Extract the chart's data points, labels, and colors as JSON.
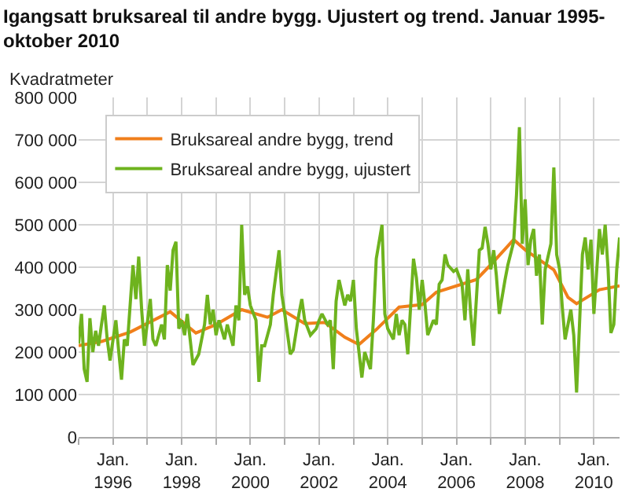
{
  "chart_data": {
    "type": "line",
    "title": "Igangsatt bruksareal til andre bygg. Ujustert og trend. Januar 1995-oktober 2010",
    "ylabel": "Kvadratmeter",
    "xlim": [
      "1995-01",
      "2010-10"
    ],
    "xticks": [
      {
        "value": "1995-01",
        "label": null
      },
      {
        "value": "1996-01",
        "label": "Jan.\n1996"
      },
      {
        "value": "1997-01",
        "label": null
      },
      {
        "value": "1998-01",
        "label": "Jan.\n1998"
      },
      {
        "value": "1999-01",
        "label": null
      },
      {
        "value": "2000-01",
        "label": "Jan.\n2000"
      },
      {
        "value": "2001-01",
        "label": null
      },
      {
        "value": "2002-01",
        "label": "Jan.\n2002"
      },
      {
        "value": "2003-01",
        "label": null
      },
      {
        "value": "2004-01",
        "label": "Jan.\n2004"
      },
      {
        "value": "2005-01",
        "label": null
      },
      {
        "value": "2006-01",
        "label": "Jan.\n2006"
      },
      {
        "value": "2007-01",
        "label": null
      },
      {
        "value": "2008-01",
        "label": "Jan.\n2008"
      },
      {
        "value": "2009-01",
        "label": null
      },
      {
        "value": "2010-01",
        "label": "Jan.\n2010"
      }
    ],
    "ylim": [
      0,
      800000
    ],
    "yticks": [
      {
        "value": 0,
        "label": "0"
      },
      {
        "value": 100000,
        "label": "100 000"
      },
      {
        "value": 200000,
        "label": "200 000"
      },
      {
        "value": 300000,
        "label": "300 000"
      },
      {
        "value": 400000,
        "label": "400 000"
      },
      {
        "value": 500000,
        "label": "500 000"
      },
      {
        "value": 600000,
        "label": "600 000"
      },
      {
        "value": 700000,
        "label": "700 000"
      },
      {
        "value": 800000,
        "label": "800 000"
      }
    ],
    "grid": true,
    "legend": "top left",
    "marker": "none",
    "line_style": "solid",
    "series": [
      {
        "name": "Bruksareal andre bygg, trend",
        "color": "#f07f1b",
        "x": [
          "1995-01",
          "1995-09",
          "1996-07",
          "1997-09",
          "1998-06",
          "1999-01",
          "1999-10",
          "2000-07",
          "2000-12",
          "2001-08",
          "2002-03",
          "2002-10",
          "2003-03",
          "2003-09",
          "2004-05",
          "2005-01",
          "2005-06",
          "2006-08",
          "2007-01",
          "2007-09",
          "2008-01",
          "2008-11",
          "2009-04",
          "2009-07",
          "2010-03",
          "2010-10"
        ],
        "values": [
          215000,
          225000,
          247000,
          295000,
          245000,
          265000,
          300000,
          282000,
          300000,
          267000,
          270000,
          235000,
          218000,
          253000,
          306000,
          312000,
          341000,
          371000,
          406000,
          465000,
          441000,
          394000,
          329000,
          314000,
          347000,
          356000
        ]
      },
      {
        "name": "Bruksareal andre bygg, ujustert",
        "color": "#6eb31e",
        "x": [
          "1995-01",
          "1995-02",
          "1995-03",
          "1995-04",
          "1995-05",
          "1995-06",
          "1995-07",
          "1995-08",
          "1995-09",
          "1995-10",
          "1995-11",
          "1995-12",
          "1996-02",
          "1996-03",
          "1996-04",
          "1996-05",
          "1996-06",
          "1996-08",
          "1996-09",
          "1996-10",
          "1996-11",
          "1996-12",
          "1997-02",
          "1997-03",
          "1997-04",
          "1997-06",
          "1997-07",
          "1997-08",
          "1997-09",
          "1997-10",
          "1997-11",
          "1997-12",
          "1998-01",
          "1998-02",
          "1998-03",
          "1998-04",
          "1998-05",
          "1998-07",
          "1998-09",
          "1998-10",
          "1998-11",
          "1998-12",
          "1999-01",
          "1999-02",
          "1999-04",
          "1999-05",
          "1999-07",
          "1999-08",
          "1999-09",
          "1999-10",
          "1999-11",
          "1999-12",
          "2000-01",
          "2000-03",
          "2000-04",
          "2000-05",
          "2000-06",
          "2000-08",
          "2000-09",
          "2000-11",
          "2000-12",
          "2001-01",
          "2001-02",
          "2001-03",
          "2001-04",
          "2001-06",
          "2001-07",
          "2001-08",
          "2001-10",
          "2001-12",
          "2002-01",
          "2002-02",
          "2002-04",
          "2002-05",
          "2002-06",
          "2002-07",
          "2002-08",
          "2002-10",
          "2002-11",
          "2002-12",
          "2003-01",
          "2003-02",
          "2003-04",
          "2003-05",
          "2003-07",
          "2003-08",
          "2003-09",
          "2003-11",
          "2003-12",
          "2004-01",
          "2004-03",
          "2004-04",
          "2004-05",
          "2004-06",
          "2004-07",
          "2004-08",
          "2004-10",
          "2004-11",
          "2004-12",
          "2005-01",
          "2005-02",
          "2005-03",
          "2005-05",
          "2005-06",
          "2005-07",
          "2005-08",
          "2005-09",
          "2005-10",
          "2005-12",
          "2006-01",
          "2006-03",
          "2006-04",
          "2006-05",
          "2006-06",
          "2006-07",
          "2006-09",
          "2006-10",
          "2006-11",
          "2006-12",
          "2007-01",
          "2007-02",
          "2007-03",
          "2007-04",
          "2007-06",
          "2007-07",
          "2007-09",
          "2007-10",
          "2007-11",
          "2007-12",
          "2008-01",
          "2008-02",
          "2008-03",
          "2008-04",
          "2008-05",
          "2008-06",
          "2008-07",
          "2008-08",
          "2008-10",
          "2008-11",
          "2008-12",
          "2009-01",
          "2009-02",
          "2009-03",
          "2009-05",
          "2009-06",
          "2009-07",
          "2009-08",
          "2009-09",
          "2009-10",
          "2009-11",
          "2009-12",
          "2010-01",
          "2010-03",
          "2010-04",
          "2010-05",
          "2010-06",
          "2010-07",
          "2010-08",
          "2010-09",
          "2010-10"
        ],
        "values": [
          220000,
          290000,
          160000,
          130000,
          280000,
          200000,
          250000,
          215000,
          265000,
          310000,
          230000,
          180000,
          275000,
          205000,
          135000,
          230000,
          215000,
          405000,
          325000,
          425000,
          300000,
          215000,
          325000,
          230000,
          215000,
          265000,
          230000,
          405000,
          345000,
          440000,
          460000,
          255000,
          275000,
          240000,
          290000,
          230000,
          170000,
          195000,
          265000,
          335000,
          265000,
          300000,
          240000,
          275000,
          230000,
          265000,
          215000,
          310000,
          275000,
          500000,
          335000,
          355000,
          310000,
          275000,
          130000,
          215000,
          215000,
          265000,
          335000,
          440000,
          335000,
          290000,
          240000,
          195000,
          205000,
          290000,
          325000,
          275000,
          240000,
          255000,
          275000,
          290000,
          265000,
          275000,
          160000,
          320000,
          370000,
          310000,
          335000,
          320000,
          370000,
          255000,
          140000,
          200000,
          160000,
          275000,
          420000,
          500000,
          290000,
          255000,
          230000,
          290000,
          240000,
          275000,
          265000,
          195000,
          420000,
          375000,
          300000,
          370000,
          310000,
          240000,
          275000,
          265000,
          360000,
          370000,
          430000,
          405000,
          390000,
          395000,
          360000,
          275000,
          395000,
          290000,
          215000,
          440000,
          445000,
          495000,
          455000,
          395000,
          440000,
          380000,
          290000,
          370000,
          405000,
          460000,
          570000,
          730000,
          455000,
          560000,
          405000,
          465000,
          490000,
          380000,
          430000,
          265000,
          395000,
          455000,
          635000,
          430000,
          395000,
          300000,
          230000,
          300000,
          240000,
          105000,
          265000,
          430000,
          470000,
          395000,
          465000,
          290000,
          490000,
          430000,
          500000,
          395000,
          245000,
          265000,
          395000,
          470000
        ]
      }
    ]
  }
}
